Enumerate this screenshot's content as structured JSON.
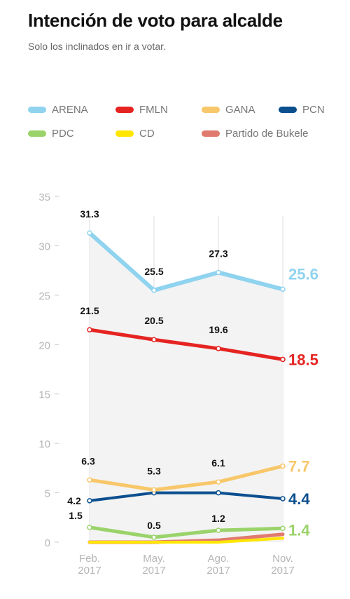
{
  "header": {
    "title": "Intención de voto para alcalde",
    "subtitle": "Solo los inclinados en ir a votar."
  },
  "chart_data": {
    "type": "line",
    "x": [
      [
        "Feb.",
        "2017"
      ],
      [
        "May.",
        "2017"
      ],
      [
        "Ago.",
        "2017"
      ],
      [
        "Nov.",
        "2017"
      ]
    ],
    "ylim": [
      0,
      35
    ],
    "yticks": [
      "0",
      "5",
      "10",
      "15",
      "20",
      "25",
      "30",
      "35"
    ],
    "grid": "vertical",
    "legend_position": "top",
    "series": [
      {
        "name": "ARENA",
        "color": "#8fd3ef",
        "values": [
          31.3,
          25.5,
          27.3,
          25.6
        ],
        "labels": [
          "31.3",
          "25.5",
          "27.3",
          "25.6"
        ]
      },
      {
        "name": "FMLN",
        "color": "#e52421",
        "values": [
          21.5,
          20.5,
          19.6,
          18.5
        ],
        "labels": [
          "21.5",
          "20.5",
          "19.6",
          "18.5"
        ]
      },
      {
        "name": "GANA",
        "color": "#f8c76a",
        "values": [
          6.3,
          5.3,
          6.1,
          7.7
        ],
        "labels": [
          "6.3",
          "5.3",
          "6.1",
          "7.7"
        ]
      },
      {
        "name": "PCN",
        "color": "#0b4f8f",
        "values": [
          4.2,
          5.0,
          5.0,
          4.4
        ],
        "labels": [
          "4.2",
          "",
          "",
          "4.4"
        ]
      },
      {
        "name": "PDC",
        "color": "#9ad36a",
        "values": [
          1.5,
          0.5,
          1.2,
          1.4
        ],
        "labels": [
          "1.5",
          "0.5",
          "1.2",
          "1.4"
        ]
      },
      {
        "name": "CD",
        "color": "#ffe600",
        "values": [
          0.0,
          0.0,
          0.0,
          0.4
        ],
        "labels": [
          "",
          "",
          "",
          ""
        ]
      },
      {
        "name": "Partido de Bukele",
        "color": "#e07a6e",
        "values": [
          0.0,
          0.0,
          0.2,
          0.8
        ],
        "labels": [
          "",
          "",
          "",
          ""
        ]
      }
    ]
  }
}
